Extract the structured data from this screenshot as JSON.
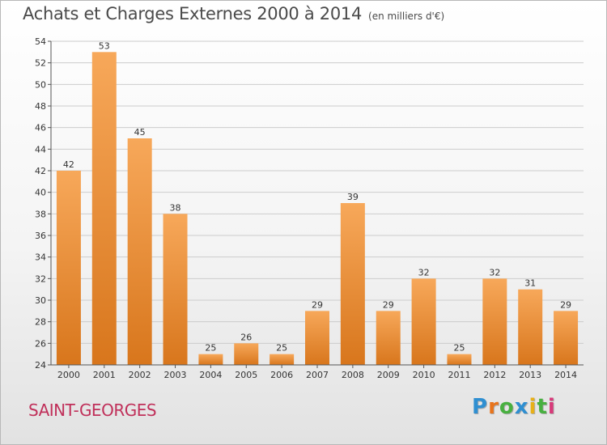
{
  "header": {
    "title": "Achats et Charges Externes 2000 à 2014",
    "unit": "(en milliers d'€)"
  },
  "footer": {
    "commune": "SAINT-GEORGES",
    "logo": "Proxiti"
  },
  "colors": {
    "bar_light": "#f7a85a",
    "bar_dark": "#d8761c",
    "grid": "#cccccc",
    "title": "#4a4a4a",
    "commune": "#c0305a",
    "logo": [
      "#2f8fd1",
      "#e8741c",
      "#48b040",
      "#2f8fd1",
      "#e8b018",
      "#48b040",
      "#d83a7a"
    ]
  },
  "chart_data": {
    "type": "bar",
    "title": "Achats et Charges Externes 2000 à 2014",
    "subtitle": "(en milliers d'€)",
    "categories": [
      "2000",
      "2001",
      "2002",
      "2003",
      "2004",
      "2005",
      "2006",
      "2007",
      "2008",
      "2009",
      "2010",
      "2011",
      "2012",
      "2013",
      "2014"
    ],
    "values": [
      42,
      53,
      45,
      38,
      25,
      26,
      25,
      29,
      39,
      29,
      32,
      25,
      32,
      31,
      29
    ],
    "ylim": [
      24,
      54
    ],
    "yticks": [
      24,
      26,
      28,
      30,
      32,
      34,
      36,
      38,
      40,
      42,
      44,
      46,
      48,
      50,
      52,
      54
    ],
    "grid": true,
    "data_labels": true
  }
}
